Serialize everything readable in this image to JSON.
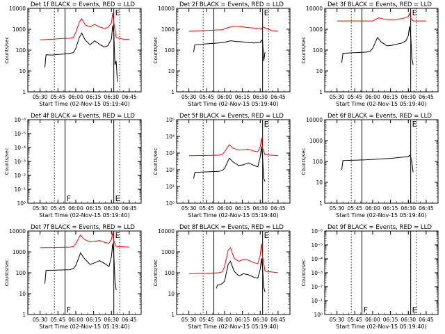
{
  "figure": {
    "xlabel": "Start Time (02-Nov-15 05:19:40)",
    "ylabel": "Counts/sec",
    "xticks": [
      "05:30",
      "05:45",
      "06:00",
      "06:15",
      "06:30",
      "06:45"
    ],
    "colors": {
      "events": "#000000",
      "lld": "#ff0000",
      "axes": "#000000",
      "background": "#ffffff"
    }
  },
  "chart_data": [
    {
      "type": "line",
      "title": "Det 1f BLACK = Events, RED = LLD",
      "xlabel": "Start Time (02-Nov-15 05:19:40)",
      "ylabel": "Counts/sec",
      "y_scale": "log",
      "ylim": [
        1,
        10000
      ],
      "yticks": [
        "1",
        "10",
        "100",
        "1000",
        "10000"
      ],
      "markers": [
        {
          "time": "05:42",
          "label": ""
        },
        {
          "time": "05:51",
          "label": ""
        },
        {
          "time": "06:32",
          "label": "E"
        },
        {
          "time": "06:37",
          "label": ""
        }
      ],
      "series": [
        {
          "name": "Events",
          "color": "#000000",
          "x": [
            "05:34",
            "05:35",
            "05:40",
            "05:45",
            "05:50",
            "05:55",
            "05:58",
            "06:00",
            "06:03",
            "06:05",
            "06:08",
            "06:12",
            "06:16",
            "06:20",
            "06:24",
            "06:27",
            "06:30",
            "06:31",
            "06:32",
            "06:33",
            "06:34",
            "06:35"
          ],
          "y": [
            15,
            60,
            58,
            62,
            65,
            70,
            75,
            120,
            400,
            650,
            300,
            180,
            280,
            190,
            140,
            160,
            350,
            1500,
            600,
            20,
            30,
            3
          ]
        },
        {
          "name": "LLD",
          "color": "#ff0000",
          "x": [
            "05:30",
            "05:40",
            "05:45",
            "05:50",
            "05:55",
            "05:58",
            "06:00",
            "06:03",
            "06:05",
            "06:08",
            "06:12",
            "06:16",
            "06:20",
            "06:24",
            "06:27",
            "06:30",
            "06:31",
            "06:32",
            "06:34",
            "06:40",
            "06:45"
          ],
          "y": [
            310,
            330,
            350,
            360,
            370,
            400,
            700,
            2200,
            3200,
            1600,
            1300,
            1700,
            1300,
            1100,
            1200,
            2000,
            6000,
            2200,
            400,
            330,
            330
          ]
        }
      ]
    },
    {
      "type": "line",
      "title": "Det 2f BLACK = Events, RED = LLD",
      "xlabel": "Start Time (02-Nov-15 05:19:40)",
      "ylabel": "Counts/sec",
      "y_scale": "log",
      "ylim": [
        1,
        10000
      ],
      "yticks": [
        "1",
        "10",
        "100",
        "1000",
        "10000"
      ],
      "markers": [
        {
          "time": "05:42",
          "label": ""
        },
        {
          "time": "05:51",
          "label": ""
        },
        {
          "time": "06:32",
          "label": "E"
        },
        {
          "time": "06:37",
          "label": ""
        }
      ],
      "series": [
        {
          "name": "Events",
          "color": "#000000",
          "x": [
            "05:34",
            "05:35",
            "05:45",
            "05:55",
            "06:00",
            "06:05",
            "06:10",
            "06:15",
            "06:20",
            "06:25",
            "06:30",
            "06:31",
            "06:32",
            "06:33",
            "06:34"
          ],
          "y": [
            80,
            180,
            200,
            220,
            240,
            280,
            260,
            250,
            230,
            220,
            230,
            300,
            250,
            30,
            80
          ]
        },
        {
          "name": "LLD",
          "color": "#ff0000",
          "x": [
            "05:30",
            "05:40",
            "05:50",
            "05:58",
            "06:03",
            "06:08",
            "06:15",
            "06:20",
            "06:28",
            "06:31",
            "06:32",
            "06:40",
            "06:45"
          ],
          "y": [
            800,
            850,
            900,
            950,
            1200,
            1400,
            1300,
            1200,
            1100,
            1000,
            1300,
            850,
            800
          ]
        }
      ]
    },
    {
      "type": "line",
      "title": "Det 3f BLACK = Events, RED = LLD",
      "xlabel": "Start Time (02-Nov-15 05:19:40)",
      "ylabel": "Counts/sec",
      "y_scale": "log",
      "ylim": [
        1,
        10000
      ],
      "yticks": [
        "1",
        "10",
        "100",
        "1000",
        "10000"
      ],
      "markers": [
        {
          "time": "05:42",
          "label": ""
        },
        {
          "time": "05:51",
          "label": ""
        },
        {
          "time": "06:32",
          "label": "E"
        },
        {
          "time": "06:37",
          "label": ""
        }
      ],
      "series": [
        {
          "name": "Events",
          "color": "#000000",
          "x": [
            "05:34",
            "05:35",
            "05:45",
            "05:55",
            "05:58",
            "06:00",
            "06:04",
            "06:07",
            "06:12",
            "06:16",
            "06:20",
            "06:25",
            "06:28",
            "06:30",
            "06:31",
            "06:32",
            "06:33",
            "06:34"
          ],
          "y": [
            25,
            70,
            75,
            80,
            90,
            120,
            400,
            250,
            160,
            170,
            190,
            220,
            280,
            500,
            1400,
            500,
            40,
            20
          ]
        },
        {
          "name": "LLD",
          "color": "#ff0000",
          "x": [
            "05:30",
            "05:55",
            "06:00",
            "06:05",
            "06:10",
            "06:15",
            "06:20",
            "06:25",
            "06:30",
            "06:31",
            "06:32",
            "06:34",
            "06:45"
          ],
          "y": [
            2500,
            2500,
            2500,
            3500,
            3000,
            2800,
            3000,
            3200,
            4000,
            6000,
            3500,
            2500,
            2500
          ]
        }
      ]
    },
    {
      "type": "line",
      "title": "Det 4f BLACK = Events, RED = LLD",
      "xlabel": "Start Time (02-Nov-15 05:19:40)",
      "ylabel": "Counts/sec",
      "y_scale": "log",
      "ylim": [
        1,
        1000000
      ],
      "yticks": [
        "10⁰",
        "10⁻¹",
        "10⁻²",
        "10⁻³",
        "10⁻⁴",
        "10⁻⁵",
        "10⁻⁶"
      ],
      "markers": [
        {
          "time": "05:42",
          "label": ""
        },
        {
          "time": "05:51",
          "label": "F"
        },
        {
          "time": "06:32",
          "label": "E"
        },
        {
          "time": "06:37",
          "label": ""
        }
      ],
      "series": []
    },
    {
      "type": "line",
      "title": "Det 5f BLACK = Events, RED = LLD",
      "xlabel": "Start Time (02-Nov-15 05:19:40)",
      "ylabel": "Counts/sec",
      "y_scale": "log",
      "ylim": [
        1,
        100000
      ],
      "yticks": [
        "10⁰",
        "10¹",
        "10²",
        "10³",
        "10⁴",
        "10⁵"
      ],
      "markers": [
        {
          "time": "05:42",
          "label": ""
        },
        {
          "time": "05:51",
          "label": ""
        },
        {
          "time": "06:32",
          "label": "E"
        },
        {
          "time": "06:37",
          "label": ""
        }
      ],
      "series": [
        {
          "name": "Events",
          "color": "#000000",
          "x": [
            "05:34",
            "05:35",
            "05:45",
            "05:55",
            "05:58",
            "06:00",
            "06:04",
            "06:07",
            "06:12",
            "06:16",
            "06:20",
            "06:25",
            "06:28",
            "06:30",
            "06:31",
            "06:32",
            "06:33",
            "06:34"
          ],
          "y": [
            30,
            70,
            75,
            80,
            90,
            120,
            500,
            300,
            180,
            200,
            260,
            180,
            150,
            600,
            2500,
            500,
            30,
            20
          ]
        },
        {
          "name": "LLD",
          "color": "#ff0000",
          "x": [
            "05:30",
            "05:45",
            "05:55",
            "05:58",
            "06:00",
            "06:04",
            "06:07",
            "06:12",
            "06:16",
            "06:20",
            "06:25",
            "06:28",
            "06:30",
            "06:31",
            "06:32",
            "06:34",
            "06:45"
          ],
          "y": [
            700,
            720,
            750,
            800,
            1200,
            3200,
            2000,
            1500,
            1600,
            1700,
            1300,
            1200,
            2500,
            8000,
            2000,
            800,
            700
          ]
        }
      ]
    },
    {
      "type": "line",
      "title": "Det 6f BLACK = Events, RED = LLD",
      "xlabel": "Start Time (02-Nov-15 05:19:40)",
      "ylabel": "Counts/sec",
      "y_scale": "log",
      "ylim": [
        1,
        10000
      ],
      "yticks": [
        "1",
        "10",
        "100",
        "1000",
        "10000"
      ],
      "markers": [
        {
          "time": "05:42",
          "label": ""
        },
        {
          "time": "05:51",
          "label": ""
        },
        {
          "time": "06:32",
          "label": "E"
        },
        {
          "time": "06:37",
          "label": ""
        }
      ],
      "series": [
        {
          "name": "Events",
          "color": "#000000",
          "x": [
            "05:34",
            "05:35",
            "05:45",
            "05:55",
            "06:05",
            "06:15",
            "06:25",
            "06:30",
            "06:31",
            "06:32",
            "06:33",
            "06:34"
          ],
          "y": [
            40,
            110,
            115,
            120,
            130,
            140,
            160,
            170,
            200,
            160,
            90,
            30
          ]
        }
      ]
    },
    {
      "type": "line",
      "title": "Det 7f BLACK = Events, RED = LLD",
      "xlabel": "Start Time (02-Nov-15 05:19:40)",
      "ylabel": "Counts/sec",
      "y_scale": "log",
      "ylim": [
        1,
        10000
      ],
      "yticks": [
        "1",
        "10",
        "100",
        "1000",
        "10000"
      ],
      "markers": [
        {
          "time": "05:42",
          "label": ""
        },
        {
          "time": "05:51",
          "label": "F"
        },
        {
          "time": "06:32",
          "label": "E"
        },
        {
          "time": "06:37",
          "label": ""
        }
      ],
      "series": [
        {
          "name": "Events",
          "color": "#000000",
          "x": [
            "05:34",
            "05:35",
            "05:45",
            "05:55",
            "05:58",
            "06:00",
            "06:04",
            "06:07",
            "06:12",
            "06:16",
            "06:20",
            "06:25",
            "06:28",
            "06:30",
            "06:31",
            "06:32",
            "06:33",
            "06:34"
          ],
          "y": [
            30,
            130,
            135,
            140,
            160,
            220,
            900,
            500,
            250,
            300,
            380,
            260,
            200,
            600,
            2500,
            700,
            40,
            15
          ]
        },
        {
          "name": "LLD",
          "color": "#ff0000",
          "x": [
            "05:30",
            "05:45",
            "05:55",
            "05:58",
            "06:00",
            "06:04",
            "06:07",
            "06:12",
            "06:16",
            "06:20",
            "06:25",
            "06:28",
            "06:30",
            "06:31",
            "06:32",
            "06:34",
            "06:45"
          ],
          "y": [
            1600,
            1650,
            1700,
            1800,
            2500,
            6500,
            4000,
            3000,
            3200,
            3500,
            2800,
            2600,
            4000,
            8500,
            3500,
            1800,
            1700
          ]
        }
      ]
    },
    {
      "type": "line",
      "title": "Det 8f BLACK = Events, RED = LLD",
      "xlabel": "Start Time (02-Nov-15 05:19:40)",
      "ylabel": "Counts/sec",
      "y_scale": "log",
      "ylim": [
        1,
        10000
      ],
      "yticks": [
        "1",
        "10",
        "100",
        "1000",
        "10000"
      ],
      "markers": [
        {
          "time": "05:42",
          "label": ""
        },
        {
          "time": "05:51",
          "label": ""
        },
        {
          "time": "06:32",
          "label": "E"
        },
        {
          "time": "06:37",
          "label": ""
        }
      ],
      "series": [
        {
          "name": "Events",
          "color": "#000000",
          "x": [
            "05:53",
            "05:54",
            "05:58",
            "06:00",
            "06:03",
            "06:05",
            "06:08",
            "06:12",
            "06:16",
            "06:20",
            "06:25",
            "06:28",
            "06:30",
            "06:31",
            "06:32",
            "06:33",
            "06:34"
          ],
          "y": [
            18,
            25,
            30,
            40,
            250,
            350,
            120,
            70,
            90,
            80,
            60,
            55,
            150,
            500,
            150,
            20,
            12
          ]
        },
        {
          "name": "LLD",
          "color": "#ff0000",
          "x": [
            "05:30",
            "05:45",
            "05:55",
            "05:58",
            "06:00",
            "06:03",
            "06:05",
            "06:08",
            "06:12",
            "06:16",
            "06:20",
            "06:25",
            "06:28",
            "06:30",
            "06:31",
            "06:32",
            "06:34",
            "06:45"
          ],
          "y": [
            90,
            95,
            100,
            110,
            200,
            1200,
            1600,
            500,
            350,
            450,
            400,
            300,
            280,
            700,
            2500,
            600,
            120,
            100
          ]
        }
      ]
    },
    {
      "type": "line",
      "title": "Det 9f BLACK = Events, RED = LLD",
      "xlabel": "Start Time (02-Nov-15 05:19:40)",
      "ylabel": "Counts/sec",
      "y_scale": "log",
      "ylim": [
        1,
        1000000
      ],
      "yticks": [
        "10⁰",
        "10⁻¹",
        "10⁻²",
        "10⁻³",
        "10⁻⁴",
        "10⁻⁵",
        "10⁻⁶"
      ],
      "markers": [
        {
          "time": "05:42",
          "label": ""
        },
        {
          "time": "05:51",
          "label": "F"
        },
        {
          "time": "06:32",
          "label": "E"
        },
        {
          "time": "06:37",
          "label": ""
        }
      ],
      "series": []
    }
  ]
}
